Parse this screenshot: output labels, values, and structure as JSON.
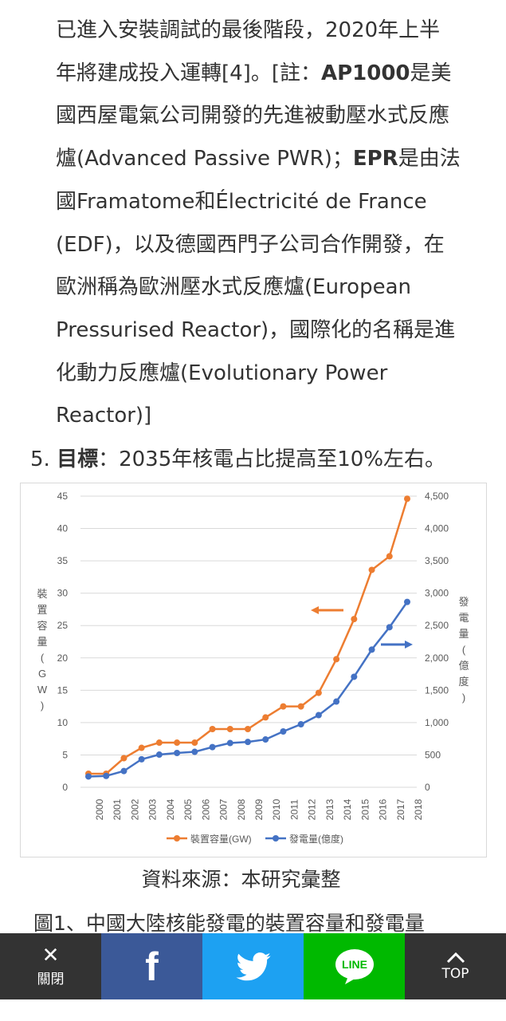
{
  "paragraph": {
    "line1": "已進入安裝調試的最後階段，2020年上半",
    "line2_pre": "年將建成投入運轉[4]。[註：",
    "line2_bold": "AP1000",
    "line2_post": "是美",
    "line3": "國西屋電氣公司開發的先進被動壓水式反應",
    "line4_pre": "爐(Advanced Passive PWR)；",
    "line4_bold": "EPR",
    "line4_post": "是由法",
    "line5": "國Framatome和Électricité de France",
    "line6": "(EDF)，以及德國西門子公司合作開發，在",
    "line7": "歐洲稱為歐洲壓水式反應爐(European",
    "line8": "Pressurised Reactor)，國際化的名稱是進",
    "line9": "化動力反應爐(Evolutionary Power",
    "line10": "Reactor)]"
  },
  "goal": {
    "number": "5.",
    "label": "目標",
    "text": "：2035年核電占比提高至10%左右。"
  },
  "chart_data": {
    "type": "line",
    "x": [
      "2000",
      "2001",
      "2002",
      "2003",
      "2004",
      "2005",
      "2006",
      "2007",
      "2008",
      "2009",
      "2010",
      "2011",
      "2012",
      "2013",
      "2014",
      "2015",
      "2016",
      "2017",
      "2018"
    ],
    "series": [
      {
        "name": "裝置容量(GW)",
        "axis": "left",
        "color": "#ed7d31",
        "values": [
          2.1,
          2.1,
          4.5,
          6.1,
          6.9,
          6.9,
          6.9,
          9.0,
          9.0,
          9.0,
          10.8,
          12.5,
          12.5,
          14.6,
          19.8,
          26.0,
          33.6,
          35.7,
          44.6
        ]
      },
      {
        "name": "發電量(億度)",
        "axis": "right",
        "color": "#4472c4",
        "values": [
          167,
          175,
          251,
          433,
          505,
          530,
          548,
          621,
          684,
          701,
          739,
          863,
          974,
          1115,
          1325,
          1708,
          2128,
          2474,
          2865
        ]
      }
    ],
    "ylabel_left": "裝置容量(GW)",
    "ylabel_right": "發電量(億度)",
    "ylim_left": [
      0,
      45
    ],
    "ylim_right": [
      0,
      4500
    ],
    "yticks_left": [
      "0",
      "5",
      "10",
      "15",
      "20",
      "25",
      "30",
      "35",
      "40",
      "45"
    ],
    "yticks_right": [
      "0",
      "500",
      "1,000",
      "1,500",
      "2,000",
      "2,500",
      "3,000",
      "3,500",
      "4,000",
      "4,500"
    ],
    "grid": true,
    "legend": "bottom"
  },
  "source_text": "資料來源：本研究彙整",
  "caption": "圖1、中國大陸核能發電的裝置容量和發電量",
  "share_bar": {
    "close_label": "關閉",
    "close_glyph": "✕",
    "facebook_glyph": "f",
    "line_label": "LINE",
    "top_label": "TOP",
    "colors": {
      "close": "#333333",
      "facebook": "#3b5998",
      "twitter": "#1da1f2",
      "line": "#00b900",
      "top": "#333333"
    }
  }
}
